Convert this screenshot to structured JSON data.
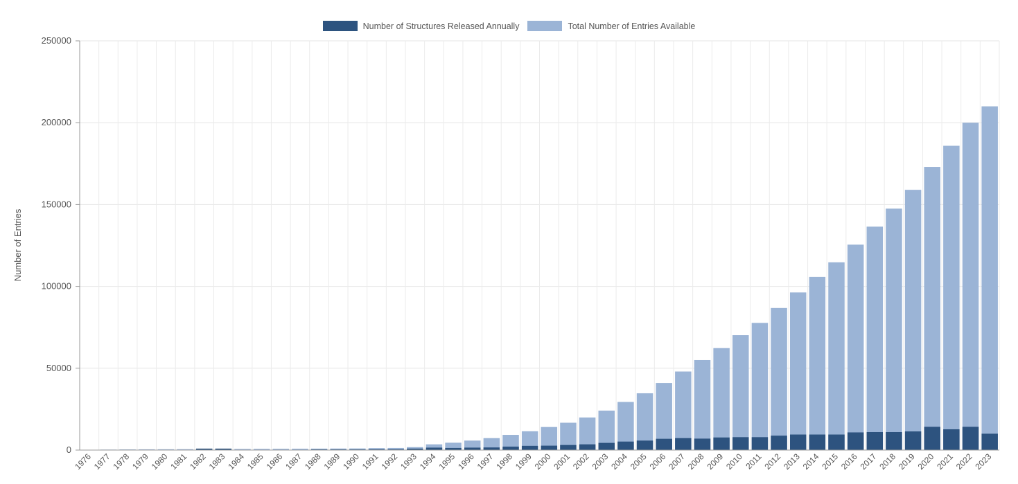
{
  "chart_data": {
    "type": "bar",
    "ylabel": "Number of Entries",
    "xlabel": "",
    "ylim": [
      0,
      250000
    ],
    "yticks": [
      "0",
      "50000",
      "100000",
      "150000",
      "200000",
      "250000"
    ],
    "grid": true,
    "legend_position": "top-center",
    "categories": [
      "1976",
      "1977",
      "1978",
      "1979",
      "1980",
      "1981",
      "1982",
      "1983",
      "1984",
      "1985",
      "1986",
      "1987",
      "1988",
      "1989",
      "1990",
      "1991",
      "1992",
      "1993",
      "1994",
      "1995",
      "1996",
      "1997",
      "1998",
      "1999",
      "2000",
      "2001",
      "2002",
      "2003",
      "2004",
      "2005",
      "2006",
      "2007",
      "2008",
      "2009",
      "2010",
      "2011",
      "2012",
      "2013",
      "2014",
      "2015",
      "2016",
      "2017",
      "2018",
      "2019",
      "2020",
      "2021",
      "2022",
      "2023"
    ],
    "series": [
      {
        "name": "Total Number of Entries Available",
        "color": "#9bb4d6",
        "values": [
          13,
          300,
          400,
          450,
          500,
          550,
          600,
          650,
          700,
          750,
          800,
          850,
          900,
          950,
          1000,
          1200,
          1300,
          1800,
          3500,
          4500,
          5800,
          7300,
          9300,
          11500,
          14100,
          16700,
          19900,
          24100,
          29400,
          34700,
          41000,
          48000,
          55000,
          62300,
          70200,
          77700,
          86800,
          96300,
          105800,
          114700,
          125500,
          136500,
          147500,
          159000,
          173000,
          185900,
          200000,
          210000
        ]
      },
      {
        "name": "Number of Structures Released Annually",
        "color": "#2d537f",
        "values": [
          13,
          200,
          150,
          100,
          100,
          100,
          900,
          900,
          50,
          50,
          60,
          60,
          400,
          400,
          400,
          500,
          500,
          900,
          1500,
          1300,
          1500,
          1600,
          2100,
          2600,
          2700,
          3100,
          3500,
          4400,
          5200,
          5800,
          6900,
          7300,
          7000,
          7700,
          7900,
          7900,
          8800,
          9500,
          9500,
          9500,
          10800,
          11000,
          11000,
          11400,
          14200,
          12700,
          14200,
          10000
        ]
      }
    ]
  }
}
